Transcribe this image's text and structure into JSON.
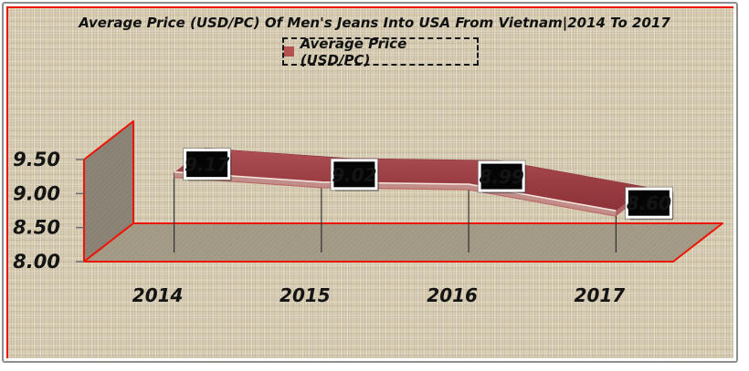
{
  "chart": {
    "colors": {
      "outline_red": "#ee1506",
      "wall": "#8c8476",
      "floor": "#a59c88",
      "ribbon_top": "#ad4f54",
      "ribbon_mid": "#9a3d42",
      "ribbon_bottom": "#8c3338",
      "ribbon_front_strip": "#c28e89",
      "ribbon_edge_light": "#f3e3dd",
      "label_box_bg": "#050505",
      "label_box_border": "#ffffff",
      "legend_marker": "#b3524f",
      "frame_gray": "#8e8e8e",
      "canvas_beige": "#ddd3b9",
      "drop_line": "#2f2f2f",
      "text": "#141414"
    }
  },
  "chart_data": {
    "type": "line",
    "subtype": "3d-ribbon",
    "title": "Average Price (USD/PC) Of Men's Jeans Into USA From Vietnam|2014 To 2017",
    "categories": [
      "2014",
      "2015",
      "2016",
      "2017"
    ],
    "series": [
      {
        "name": "Average Price (USD/PC)",
        "values": [
          9.17,
          9.02,
          8.99,
          8.6
        ]
      }
    ],
    "data_labels": [
      "9.17",
      "9.02",
      "8.99",
      "8.60"
    ],
    "xlabel": "",
    "ylabel": "",
    "ylim": [
      8.0,
      9.5
    ],
    "yticks": [
      "9.50",
      "9.00",
      "8.50",
      "8.00"
    ],
    "ytick_values": [
      9.5,
      9.0,
      8.5,
      8.0
    ],
    "legend_position": "top",
    "grid": false
  }
}
